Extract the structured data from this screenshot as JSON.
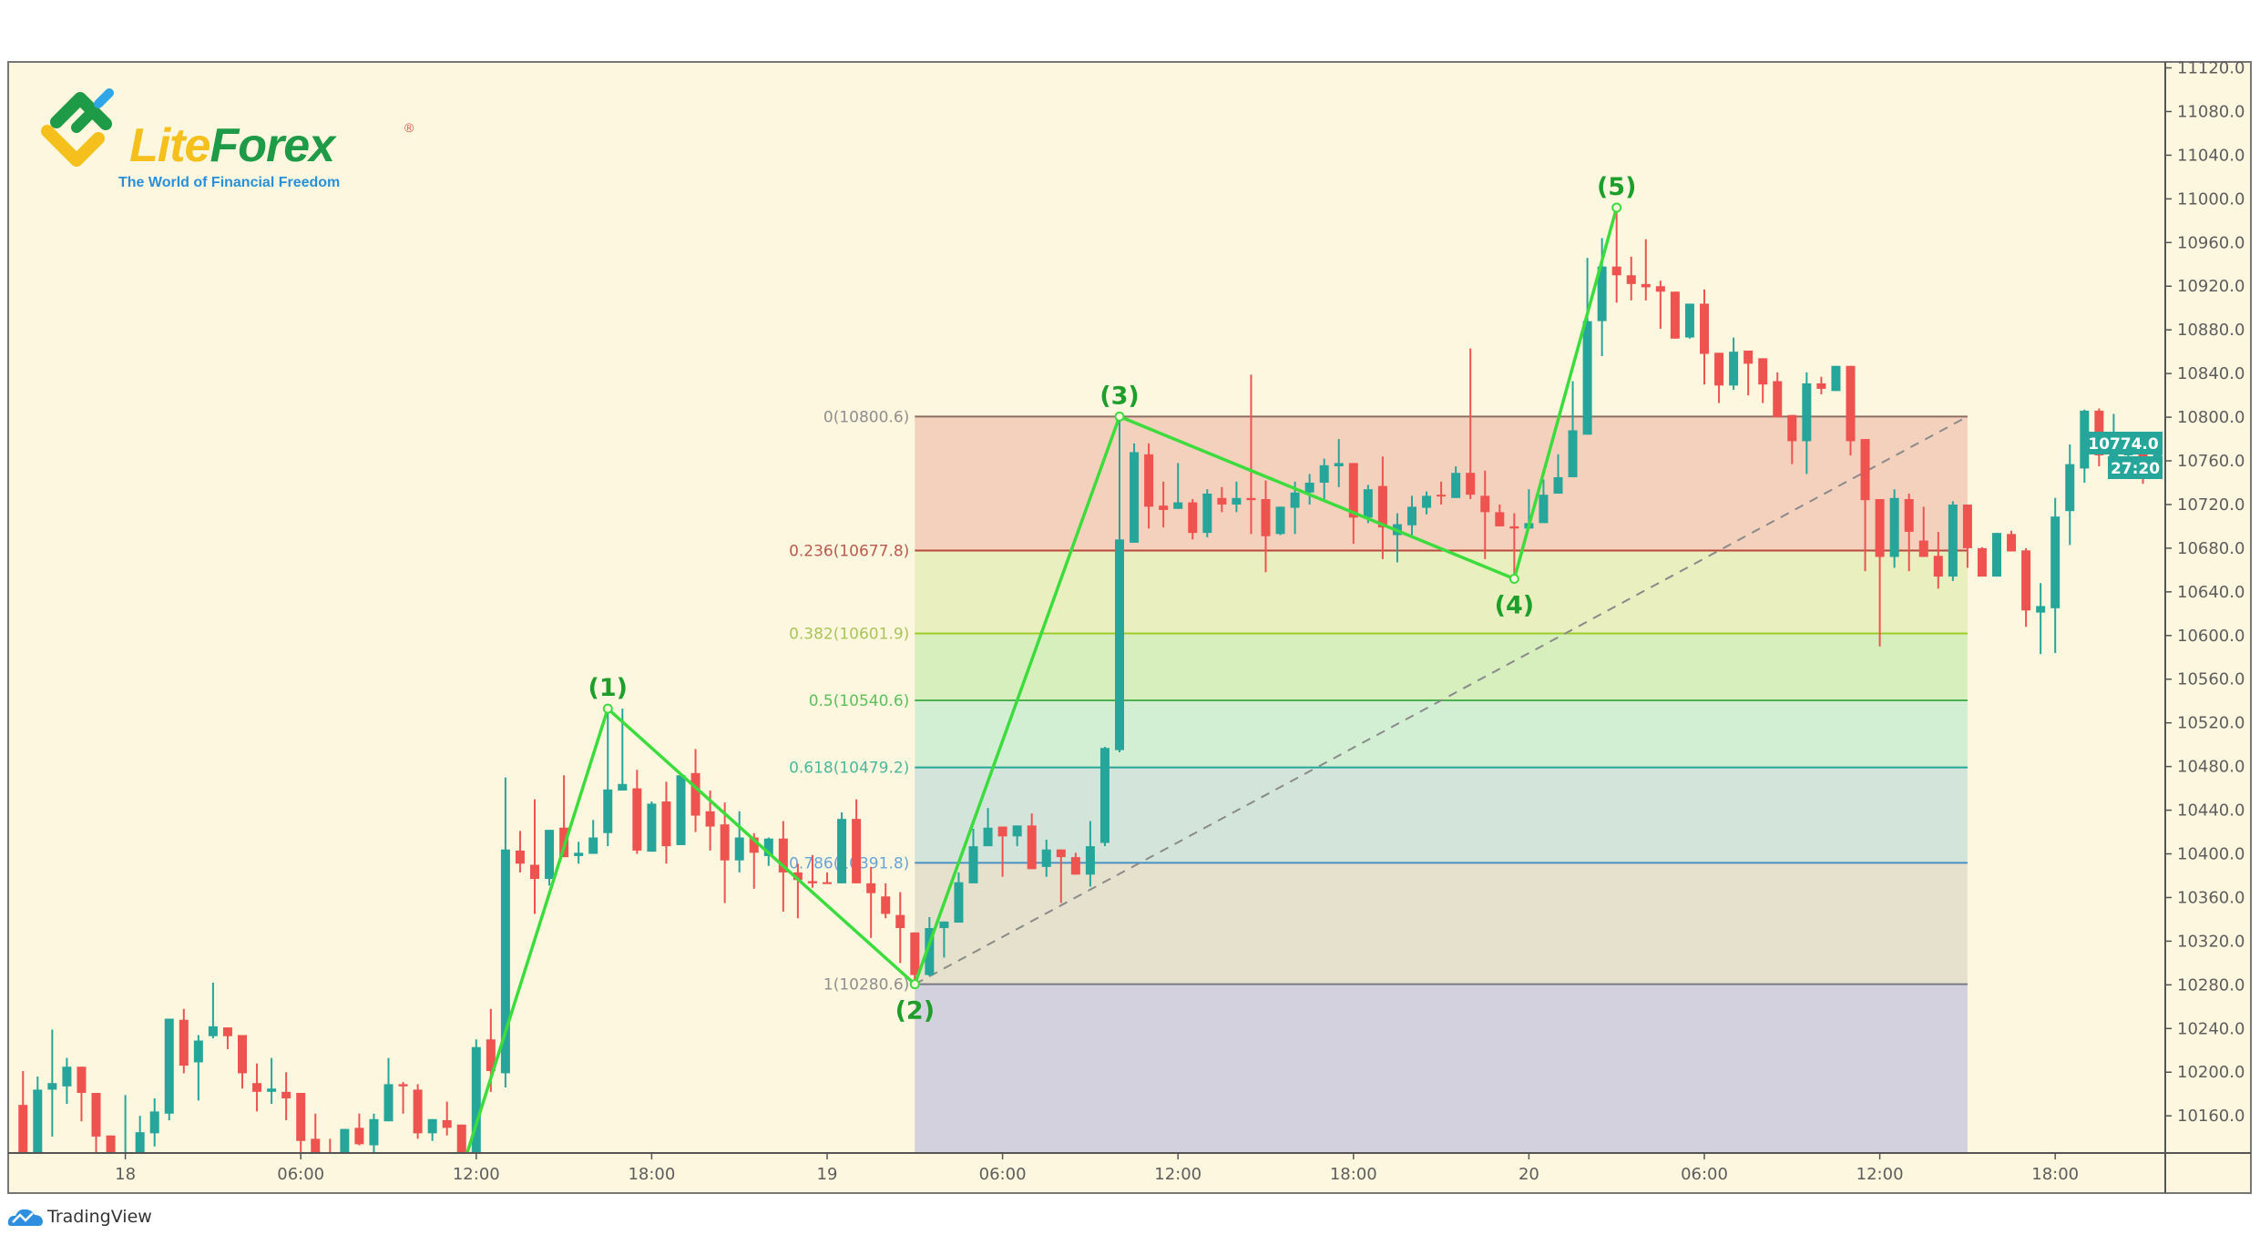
{
  "colors": {
    "background": "#fdf7e0",
    "up": "#26a69a",
    "down": "#ef5350",
    "wave": "#3ddc3d",
    "wave_label": "#1e9e2a",
    "last_price_bg": "#26a69a"
  },
  "logo": {
    "lite": "Lite",
    "forex": "Forex",
    "registered": "®",
    "tagline": "The World of Financial Freedom"
  },
  "footer": {
    "brand": "TradingView"
  },
  "chart_data": {
    "type": "candlestick",
    "title": "",
    "interval_minutes": 30,
    "first_candle_time": "17 20:30",
    "candles_ohlc": [
      [
        10170,
        10201,
        10115,
        10120
      ],
      [
        10120,
        10196,
        10115,
        10184
      ],
      [
        10184,
        10239,
        10141,
        10190
      ],
      [
        10187,
        10213,
        10171,
        10205
      ],
      [
        10205,
        10205,
        10155,
        10181
      ],
      [
        10181,
        10181,
        10125,
        10141
      ],
      [
        10142,
        10142,
        10118,
        10122
      ],
      [
        10124,
        10179,
        10120,
        10126
      ],
      [
        10125,
        10160,
        10120,
        10145
      ],
      [
        10144,
        10176,
        10132,
        10164
      ],
      [
        10162,
        10249,
        10156,
        10249
      ],
      [
        10248,
        10258,
        10199,
        10206
      ],
      [
        10209,
        10234,
        10174,
        10229
      ],
      [
        10233,
        10282,
        10231,
        10242
      ],
      [
        10241,
        10241,
        10221,
        10233
      ],
      [
        10234,
        10234,
        10185,
        10199
      ],
      [
        10190,
        10208,
        10164,
        10182
      ],
      [
        10182,
        10213,
        10171,
        10185
      ],
      [
        10182,
        10200,
        10156,
        10176
      ],
      [
        10181,
        10181,
        10125,
        10137
      ],
      [
        10139,
        10162,
        10115,
        10120
      ],
      [
        10125,
        10139,
        10110,
        10118
      ],
      [
        10120,
        10148,
        10115,
        10148
      ],
      [
        10149,
        10162,
        10133,
        10134
      ],
      [
        10133,
        10162,
        10125,
        10157
      ],
      [
        10155,
        10213,
        10155,
        10189
      ],
      [
        10189,
        10191,
        10162,
        10187
      ],
      [
        10184,
        10189,
        10139,
        10144
      ],
      [
        10144,
        10157,
        10137,
        10157
      ],
      [
        10156,
        10173,
        10142,
        10149
      ],
      [
        10152,
        10152,
        10110,
        10115
      ],
      [
        10110,
        10230,
        10100,
        10223
      ],
      [
        10230,
        10258,
        10182,
        10201
      ],
      [
        10199,
        10470,
        10186,
        10404
      ],
      [
        10403,
        10421,
        10383,
        10391
      ],
      [
        10390,
        10450,
        10345,
        10377
      ],
      [
        10377,
        10422,
        10371,
        10422
      ],
      [
        10424,
        10472,
        10397,
        10397
      ],
      [
        10398,
        10411,
        10391,
        10401
      ],
      [
        10400,
        10431,
        10400,
        10415
      ],
      [
        10419,
        10533,
        10407,
        10459
      ],
      [
        10458,
        10533,
        10458,
        10464
      ],
      [
        10460,
        10477,
        10400,
        10403
      ],
      [
        10402,
        10448,
        10402,
        10446
      ],
      [
        10448,
        10466,
        10391,
        10407
      ],
      [
        10408,
        10472,
        10408,
        10472
      ],
      [
        10474,
        10496,
        10420,
        10435
      ],
      [
        10439,
        10458,
        10403,
        10425
      ],
      [
        10427,
        10447,
        10355,
        10394
      ],
      [
        10394,
        10439,
        10383,
        10415
      ],
      [
        10415,
        10419,
        10368,
        10401
      ],
      [
        10398,
        10415,
        10389,
        10414
      ],
      [
        10414,
        10430,
        10347,
        10383
      ],
      [
        10383,
        10391,
        10341,
        10376
      ],
      [
        10375,
        10399,
        10369,
        10373
      ],
      [
        10374,
        10383,
        10373,
        10373
      ],
      [
        10373,
        10438,
        10373,
        10432
      ],
      [
        10432,
        10450,
        10373,
        10373
      ],
      [
        10373,
        10388,
        10323,
        10364
      ],
      [
        10361,
        10373,
        10341,
        10345
      ],
      [
        10344,
        10365,
        10300,
        10332
      ],
      [
        10328,
        10328,
        10280.6,
        10289
      ],
      [
        10289,
        10342,
        10288,
        10332
      ],
      [
        10332,
        10338,
        10305,
        10338
      ],
      [
        10337,
        10383,
        10337,
        10374
      ],
      [
        10373,
        10423,
        10373,
        10407
      ],
      [
        10407,
        10442,
        10407,
        10424
      ],
      [
        10425,
        10425,
        10379,
        10416
      ],
      [
        10416,
        10426,
        10407,
        10426
      ],
      [
        10426,
        10437,
        10386,
        10386
      ],
      [
        10388,
        10413,
        10379,
        10404
      ],
      [
        10404,
        10404,
        10355,
        10397
      ],
      [
        10397,
        10401,
        10381,
        10381
      ],
      [
        10381,
        10430,
        10370,
        10407
      ],
      [
        10410,
        10498,
        10407,
        10497
      ],
      [
        10495,
        10800.6,
        10493,
        10688
      ],
      [
        10685,
        10776,
        10685,
        10768
      ],
      [
        10766,
        10776,
        10698,
        10718
      ],
      [
        10719,
        10741,
        10699,
        10715
      ],
      [
        10716,
        10758,
        10716,
        10722
      ],
      [
        10722,
        10725,
        10688,
        10694
      ],
      [
        10694,
        10734,
        10690,
        10730
      ],
      [
        10726,
        10736,
        10713,
        10720
      ],
      [
        10720,
        10741,
        10713,
        10726
      ],
      [
        10726,
        10839,
        10693,
        10724
      ],
      [
        10725,
        10742,
        10658,
        10691
      ],
      [
        10693,
        10718,
        10692,
        10718
      ],
      [
        10717,
        10741,
        10693,
        10731
      ],
      [
        10731,
        10748,
        10720,
        10740
      ],
      [
        10740,
        10762,
        10724,
        10756
      ],
      [
        10755,
        10780,
        10736,
        10758
      ],
      [
        10758,
        10758,
        10684,
        10708
      ],
      [
        10708,
        10738,
        10703,
        10734
      ],
      [
        10737,
        10764,
        10670,
        10699
      ],
      [
        10692,
        10712,
        10667,
        10702
      ],
      [
        10701,
        10728,
        10692,
        10718
      ],
      [
        10717,
        10732,
        10711,
        10728
      ],
      [
        10729,
        10741,
        10720,
        10728
      ],
      [
        10726,
        10755,
        10726,
        10749
      ],
      [
        10749,
        10863,
        10725,
        10729
      ],
      [
        10728,
        10751,
        10670,
        10713
      ],
      [
        10713,
        10720,
        10700,
        10700
      ],
      [
        10700,
        10712,
        10652,
        10698
      ],
      [
        10698,
        10734,
        10698,
        10703
      ],
      [
        10703,
        10743,
        10703,
        10729
      ],
      [
        10730,
        10766,
        10730,
        10745
      ],
      [
        10745,
        10833,
        10745,
        10788
      ],
      [
        10784,
        10946,
        10784,
        10888
      ],
      [
        10888,
        10964,
        10856,
        10938
      ],
      [
        10938,
        10992,
        10905,
        10930
      ],
      [
        10930,
        10947,
        10907,
        10922
      ],
      [
        10922,
        10963,
        10907,
        10919
      ],
      [
        10920,
        10925,
        10881,
        10915
      ],
      [
        10915,
        10915,
        10872,
        10872
      ],
      [
        10873,
        10904,
        10872,
        10904
      ],
      [
        10904,
        10917,
        10830,
        10858
      ],
      [
        10859,
        10859,
        10813,
        10829
      ],
      [
        10829,
        10873,
        10825,
        10860
      ],
      [
        10861,
        10861,
        10820,
        10849
      ],
      [
        10854,
        10854,
        10813,
        10830
      ],
      [
        10833,
        10841,
        10800,
        10800
      ],
      [
        10802,
        10802,
        10757,
        10778
      ],
      [
        10778,
        10841,
        10748,
        10831
      ],
      [
        10831,
        10837,
        10821,
        10826
      ],
      [
        10824,
        10847,
        10824,
        10847
      ],
      [
        10847,
        10847,
        10765,
        10778
      ],
      [
        10780,
        10780,
        10659,
        10724
      ],
      [
        10725,
        10725,
        10590,
        10672
      ],
      [
        10672,
        10734,
        10662,
        10726
      ],
      [
        10725,
        10730,
        10659,
        10695
      ],
      [
        10687,
        10718,
        10672,
        10672
      ],
      [
        10673,
        10695,
        10643,
        10654
      ],
      [
        10654,
        10723,
        10650,
        10720
      ],
      [
        10720,
        10720,
        10662,
        10680
      ],
      [
        10680,
        10681,
        10654,
        10654
      ],
      [
        10654,
        10694,
        10654,
        10694
      ],
      [
        10693,
        10696,
        10677,
        10677
      ],
      [
        10678,
        10680,
        10608,
        10623
      ],
      [
        10621,
        10648,
        10583,
        10627
      ],
      [
        10625,
        10726,
        10584,
        10709
      ],
      [
        10714,
        10775,
        10683,
        10757
      ],
      [
        10753,
        10807,
        10740,
        10806
      ],
      [
        10806,
        10808,
        10755,
        10765
      ],
      [
        10764,
        10803,
        10753,
        10767
      ],
      [
        10765,
        10775,
        10749,
        10775
      ],
      [
        10775,
        10776,
        10739,
        10755
      ],
      [
        10752,
        10774,
        10745,
        10774
      ]
    ],
    "y_ticks": [
      "11120.0",
      "11080.0",
      "11040.0",
      "11000.0",
      "10960.0",
      "10920.0",
      "10880.0",
      "10840.0",
      "10800.0",
      "10760.0",
      "10720.0",
      "10680.0",
      "10640.0",
      "10600.0",
      "10560.0",
      "10520.0",
      "10480.0",
      "10440.0",
      "10400.0",
      "10360.0",
      "10320.0",
      "10280.0",
      "10240.0",
      "10200.0",
      "10160.0"
    ],
    "x_ticks": [
      "18",
      "06:00",
      "12:00",
      "18:00",
      "19",
      "06:00",
      "12:00",
      "18:00",
      "20",
      "06:00",
      "12:00",
      "18:00"
    ],
    "last_price": "10774.0",
    "countdown": "27:20",
    "elliott_waves": [
      {
        "label": "",
        "time": "18 11:30",
        "price": 10110
      },
      {
        "label": "(1)",
        "time": "18 16:30",
        "price": 10533
      },
      {
        "label": "(2)",
        "time": "19 03:00",
        "price": 10280.6
      },
      {
        "label": "(3)",
        "time": "19 10:00",
        "price": 10800.6
      },
      {
        "label": "(4)",
        "time": "19 23:30",
        "price": 10652
      },
      {
        "label": "(5)",
        "time": "20 03:00",
        "price": 10992
      }
    ],
    "fibonacci": {
      "start_time": "19 03:00",
      "end_time": "20 15:00",
      "levels": [
        {
          "label": "0(10800.6)",
          "price": 10800.6,
          "line": "#8d6e63",
          "text": "#8f8f8f",
          "fill": "#f4d1bd"
        },
        {
          "label": "0.236(10677.8)",
          "price": 10677.8,
          "line": "#b84a3c",
          "text": "#b85a50",
          "fill": "#e9efbe"
        },
        {
          "label": "0.382(10601.9)",
          "price": 10601.9,
          "line": "#9ccc2c",
          "text": "#a9c55a",
          "fill": "#d6efbd"
        },
        {
          "label": "0.5(10540.6)",
          "price": 10540.6,
          "line": "#4caf50",
          "text": "#5fbf5a",
          "fill": "#d2efd4"
        },
        {
          "label": "0.618(10479.2)",
          "price": 10479.2,
          "line": "#26a69a",
          "text": "#4bb89a",
          "fill": "#d3e5da"
        },
        {
          "label": "0.786(10391.8)",
          "price": 10391.8,
          "line": "#4a90c2",
          "text": "#6aa5d6",
          "fill": "#e5e1cd"
        },
        {
          "label": "1(10280.6)",
          "price": 10280.6,
          "line": "#787b86",
          "text": "#8f8f8f",
          "fill": "#d4d1de"
        }
      ]
    }
  }
}
